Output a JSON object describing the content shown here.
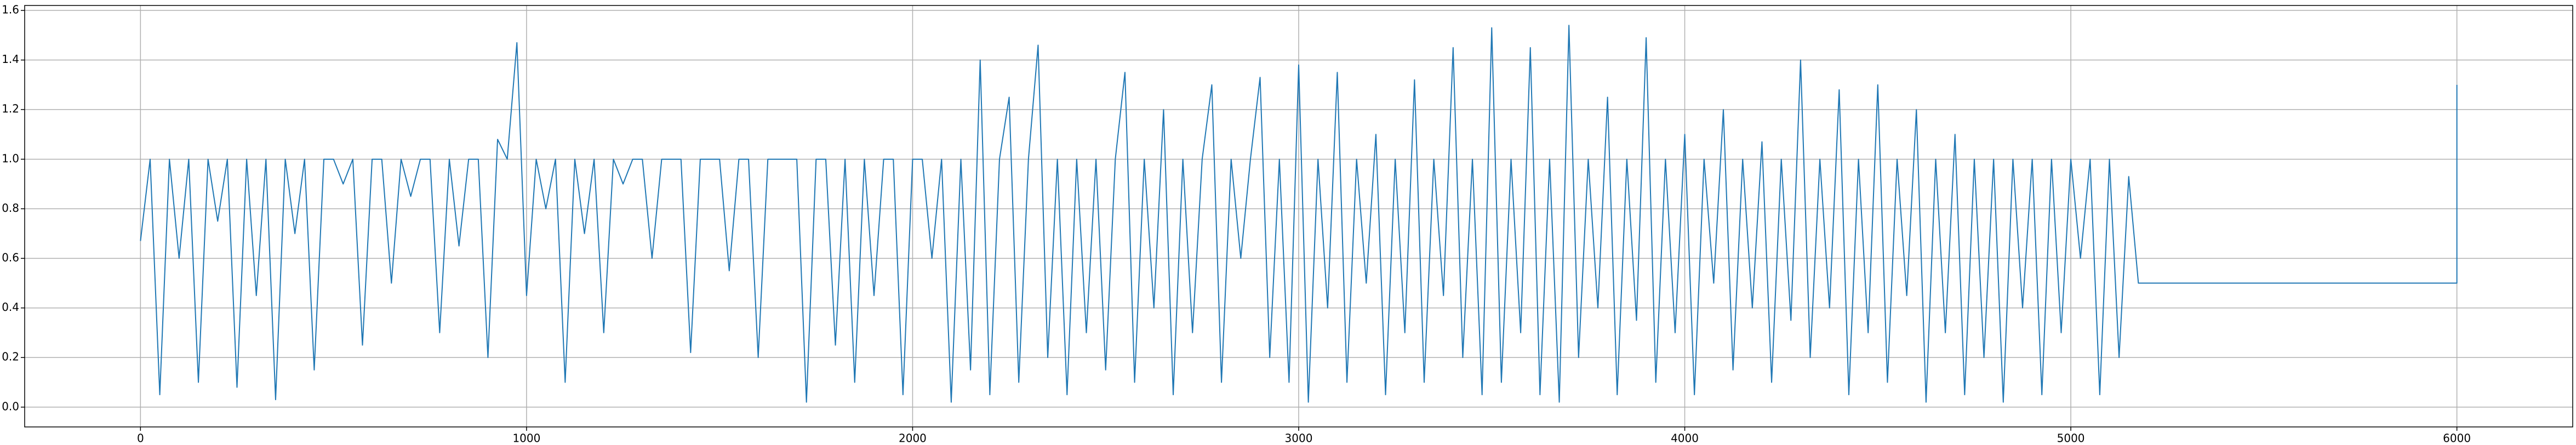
{
  "chart_data": {
    "type": "line",
    "x": [
      0,
      25,
      50,
      75,
      100,
      125,
      150,
      175,
      200,
      225,
      250,
      275,
      300,
      325,
      350,
      375,
      400,
      425,
      450,
      475,
      500,
      525,
      550,
      575,
      600,
      625,
      650,
      675,
      700,
      725,
      750,
      775,
      800,
      825,
      850,
      875,
      900,
      925,
      950,
      975,
      1000,
      1025,
      1050,
      1075,
      1100,
      1125,
      1150,
      1175,
      1200,
      1225,
      1250,
      1275,
      1300,
      1325,
      1350,
      1375,
      1400,
      1425,
      1450,
      1475,
      1500,
      1525,
      1550,
      1575,
      1600,
      1625,
      1650,
      1675,
      1700,
      1725,
      1750,
      1775,
      1800,
      1825,
      1850,
      1875,
      1900,
      1925,
      1950,
      1975,
      2000,
      2025,
      2050,
      2075,
      2100,
      2125,
      2150,
      2175,
      2200,
      2225,
      2250,
      2275,
      2300,
      2325,
      2350,
      2375,
      2400,
      2425,
      2450,
      2475,
      2500,
      2525,
      2550,
      2575,
      2600,
      2625,
      2650,
      2675,
      2700,
      2725,
      2750,
      2775,
      2800,
      2825,
      2850,
      2875,
      2900,
      2925,
      2950,
      2975,
      3000,
      3025,
      3050,
      3075,
      3100,
      3125,
      3150,
      3175,
      3200,
      3225,
      3250,
      3275,
      3300,
      3325,
      3350,
      3375,
      3400,
      3425,
      3450,
      3475,
      3500,
      3525,
      3550,
      3575,
      3600,
      3625,
      3650,
      3675,
      3700,
      3725,
      3750,
      3775,
      3800,
      3825,
      3850,
      3875,
      3900,
      3925,
      3950,
      3975,
      4000,
      4025,
      4050,
      4075,
      4100,
      4125,
      4150,
      4175,
      4200,
      4225,
      4250,
      4275,
      4300,
      4325,
      4350,
      4375,
      4400,
      4425,
      4450,
      4475,
      4500,
      4525,
      4550,
      4575,
      4600,
      4625,
      4650,
      4675,
      4700,
      4725,
      4750,
      4775,
      4800,
      4825,
      4850,
      4875,
      4900,
      4925,
      4950,
      4975,
      5000,
      5025,
      5050,
      5075,
      5100,
      5125,
      5150,
      5175,
      6000,
      6000
    ],
    "series": [
      {
        "color": "#1f77b4",
        "values": [
          0.67,
          1,
          0.05,
          1,
          0.6,
          1,
          0.1,
          1,
          0.75,
          1,
          0.08,
          1,
          0.45,
          1,
          0.03,
          1,
          0.7,
          1,
          0.15,
          1,
          1,
          0.9,
          1,
          0.25,
          1,
          1,
          0.5,
          1,
          0.85,
          1,
          1,
          0.3,
          1,
          0.65,
          1,
          1,
          0.2,
          1.08,
          1,
          1.47,
          0.45,
          1,
          0.8,
          1,
          0.1,
          1,
          0.7,
          1,
          0.3,
          1,
          0.9,
          1,
          1,
          0.6,
          1,
          1,
          1,
          0.22,
          1,
          1,
          1,
          0.55,
          1,
          1,
          0.2,
          1,
          1,
          1,
          1,
          0.02,
          1,
          1,
          0.25,
          1,
          0.1,
          1,
          0.45,
          1,
          1,
          0.05,
          1,
          1,
          0.6,
          1,
          0.02,
          1,
          0.15,
          1.4,
          0.05,
          1,
          1.25,
          0.1,
          1,
          1.46,
          0.2,
          1,
          0.05,
          1,
          0.3,
          1,
          0.15,
          1,
          1.35,
          0.1,
          1,
          0.4,
          1.2,
          0.05,
          1,
          0.3,
          1,
          1.3,
          0.1,
          1,
          0.6,
          1,
          1.33,
          0.2,
          1,
          0.1,
          1.38,
          0.02,
          1,
          0.4,
          1.35,
          0.1,
          1,
          0.5,
          1.1,
          0.05,
          1,
          0.3,
          1.32,
          0.1,
          1,
          0.45,
          1.45,
          0.2,
          1,
          0.05,
          1.53,
          0.1,
          1,
          0.3,
          1.45,
          0.05,
          1,
          0.02,
          1.54,
          0.2,
          1,
          0.4,
          1.25,
          0.05,
          1,
          0.35,
          1.49,
          0.1,
          1,
          0.3,
          1.1,
          0.05,
          1,
          0.5,
          1.2,
          0.15,
          1,
          0.4,
          1.07,
          0.1,
          1,
          0.35,
          1.4,
          0.2,
          1,
          0.4,
          1.28,
          0.05,
          1,
          0.3,
          1.3,
          0.1,
          1,
          0.45,
          1.2,
          0.02,
          1,
          0.3,
          1.1,
          0.05,
          1,
          0.2,
          1,
          0.02,
          1,
          0.4,
          1,
          0.05,
          1,
          0.3,
          1,
          0.6,
          1,
          0.05,
          1,
          0.2,
          0.93,
          0.5,
          0.5,
          1.3
        ]
      }
    ],
    "xlim": [
      -300,
      6300
    ],
    "ylim": [
      -0.08,
      1.62
    ],
    "xticks": [
      0,
      1000,
      2000,
      3000,
      4000,
      5000,
      6000
    ],
    "yticks": [
      {
        "value": 0,
        "label": "0.0"
      },
      0.2,
      0.4,
      0.6,
      0.8,
      {
        "value": 1,
        "label": "1.0"
      },
      1.2,
      1.4,
      1.6
    ],
    "grid": true
  }
}
